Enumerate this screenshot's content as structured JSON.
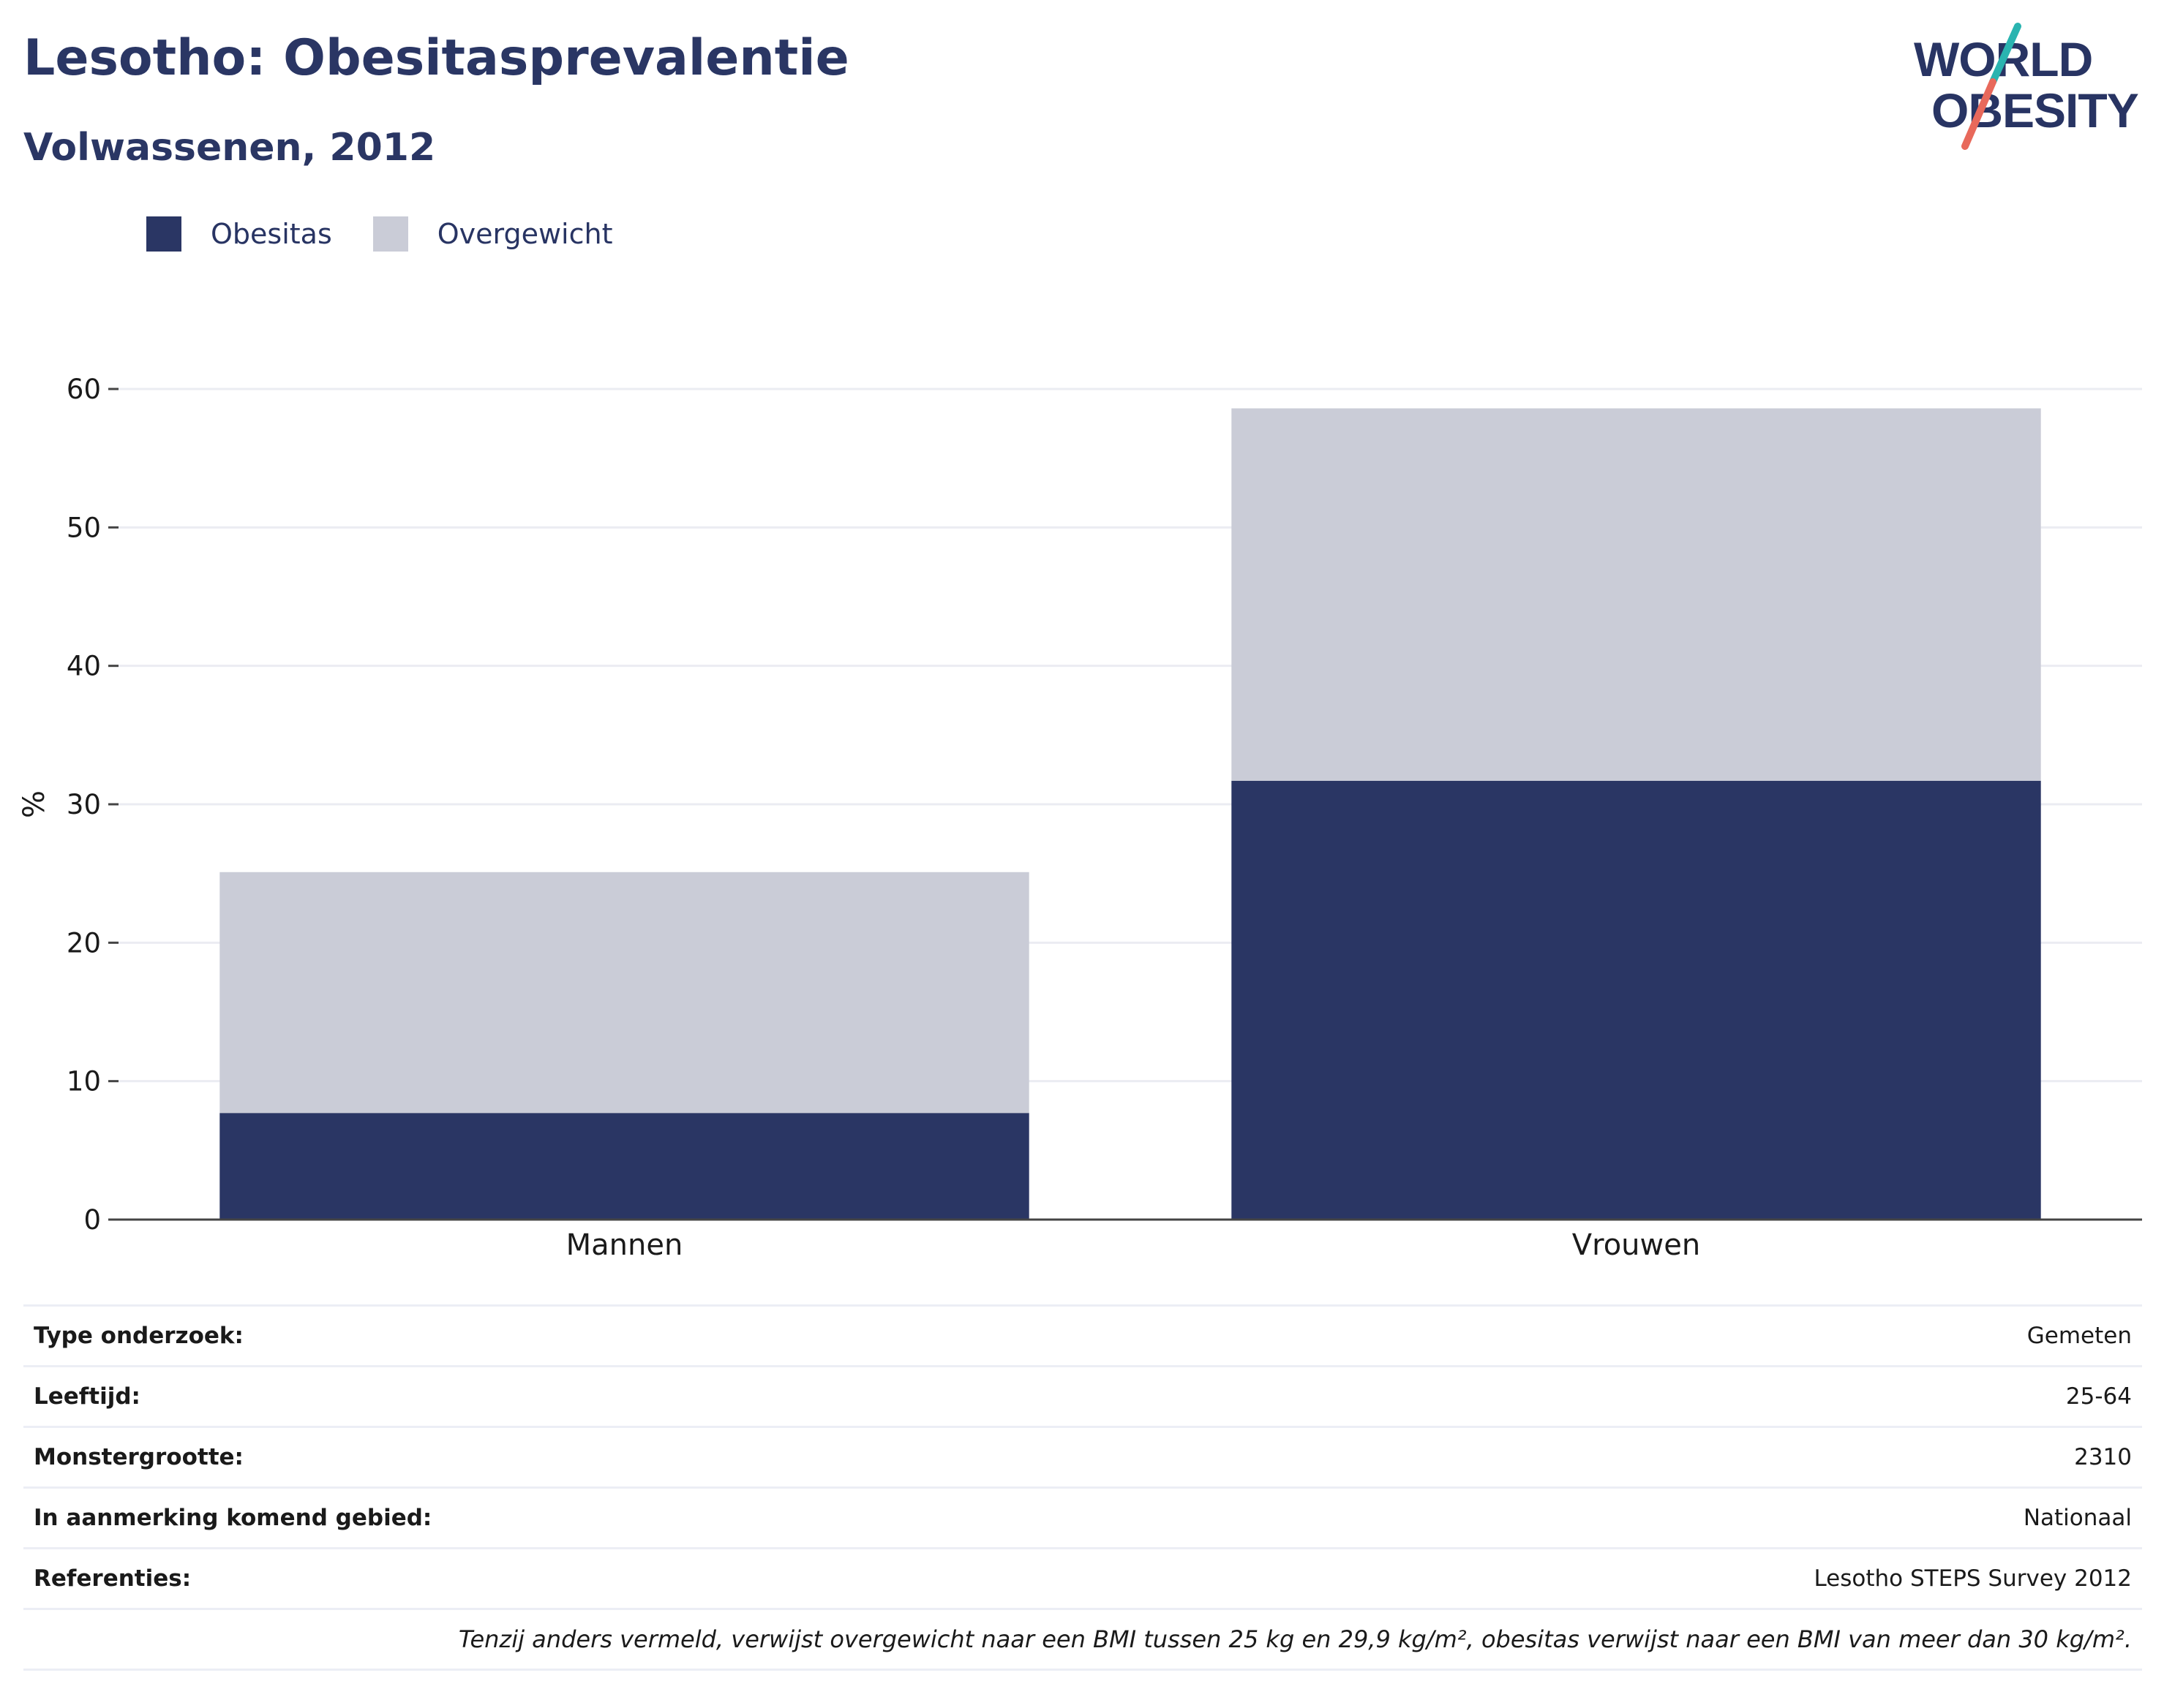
{
  "header": {
    "title": "Lesotho: Obesitasprevalentie",
    "subtitle": "Volwassenen, 2012"
  },
  "logo": {
    "line1": "WORLD",
    "line2": "OBESITY",
    "colors": {
      "text": "#283463",
      "slash_top": "#2ab4b0",
      "slash_bottom": "#e8695b"
    }
  },
  "legend": [
    {
      "label": "Obesitas",
      "color": "#2a3664"
    },
    {
      "label": "Overgewicht",
      "color": "#caccd7"
    }
  ],
  "chart_data": {
    "type": "bar",
    "stacked": true,
    "categories": [
      "Mannen",
      "Vrouwen"
    ],
    "series": [
      {
        "name": "Obesitas",
        "color": "#2a3664",
        "values": [
          7.7,
          31.7
        ]
      },
      {
        "name": "Overgewicht",
        "color": "#caccd7",
        "values": [
          17.4,
          26.9
        ]
      }
    ],
    "ylabel": "%",
    "xlabel": "",
    "ylim": [
      0,
      60
    ],
    "yticks": [
      0,
      10,
      20,
      30,
      40,
      50,
      60
    ],
    "grid": true,
    "legend_position": "top-left"
  },
  "info": [
    {
      "label": "Type onderzoek:",
      "value": "Gemeten"
    },
    {
      "label": "Leeftijd:",
      "value": "25-64"
    },
    {
      "label": "Monstergrootte:",
      "value": "2310"
    },
    {
      "label": "In aanmerking komend gebied:",
      "value": "Nationaal"
    },
    {
      "label": "Referenties:",
      "value": "Lesotho STEPS Survey 2012"
    }
  ],
  "footnote": "Tenzij anders vermeld, verwijst overgewicht naar een BMI tussen 25 kg en 29,9 kg/m², obesitas verwijst naar een BMI van meer dan 30 kg/m²."
}
